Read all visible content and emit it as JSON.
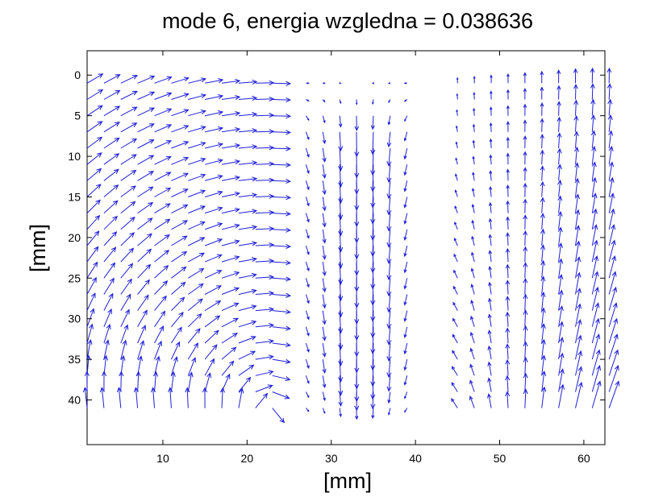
{
  "chart_data": {
    "type": "quiver",
    "title": "mode 6, energia wzgledna = 0.038636",
    "xlabel": "[mm]",
    "ylabel": "[mm]",
    "xlim": [
      1,
      62.5
    ],
    "ylim": [
      45.5,
      -3
    ],
    "y_direction": "downward",
    "xticks": [
      10,
      20,
      30,
      40,
      50,
      60
    ],
    "yticks": [
      0,
      5,
      10,
      15,
      20,
      25,
      30,
      35,
      40
    ],
    "arrow_color": "#1f1fd6",
    "grid": false,
    "field": {
      "x_start": 1,
      "x_step": 2,
      "x_count": 32,
      "y_start": 1,
      "y_step": 2,
      "y_count": 21,
      "max_arrow_length_mm": 3.6,
      "regions": [
        {
          "name": "left vortex",
          "center": [
            22,
            42
          ],
          "rotation": "counter-clockwise",
          "x_range": [
            1,
            24
          ]
        },
        {
          "name": "central downward jet",
          "x_range": [
            26,
            40
          ],
          "direction": "+y (down the page)",
          "peak_near_x": 34
        },
        {
          "name": "right upward jet",
          "x_range": [
            46,
            62
          ],
          "direction": "-y (up the page)",
          "strongest_at": "bottom-right"
        }
      ]
    }
  }
}
